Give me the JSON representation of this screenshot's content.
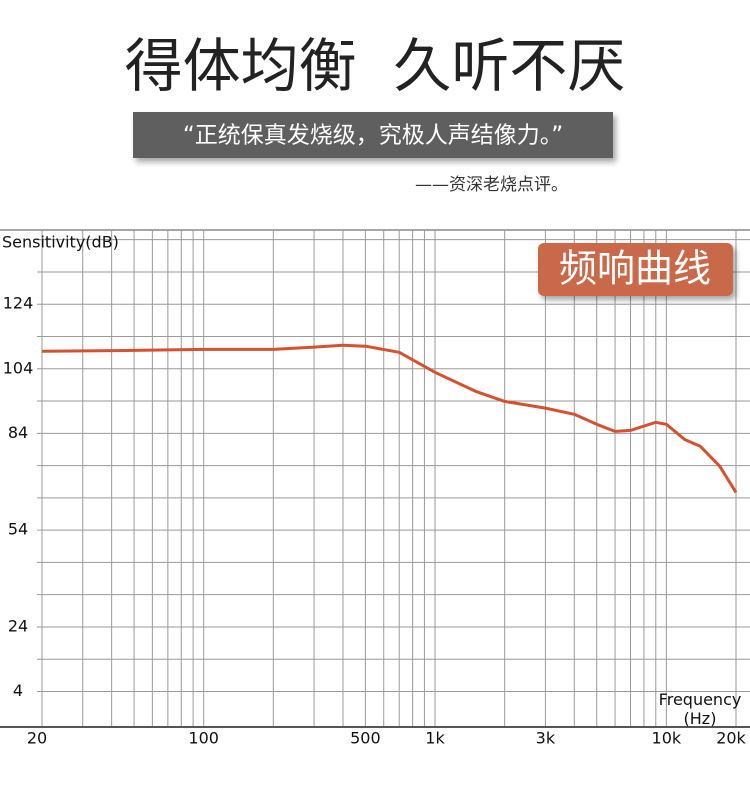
{
  "heading": "得体均衡  久听不厌",
  "quote": "“正统保真发烧级，究极人声结像力。”",
  "attribution": "——资深老烧点评。",
  "chart_data": {
    "type": "line",
    "title": "频响曲线",
    "y_label": "Sensitivity(dB)",
    "x_label": "Frequency\n(Hz)",
    "log_x": true,
    "grid": true,
    "color": "#d4522f",
    "x": [
      20,
      50,
      100,
      200,
      300,
      400,
      500,
      700,
      1000,
      1500,
      2000,
      3000,
      4000,
      5000,
      6000,
      7000,
      9000,
      10000,
      12000,
      14000,
      17000,
      20000
    ],
    "values": [
      109.4,
      109.7,
      110,
      110,
      110.7,
      111.3,
      111,
      109.1,
      102.9,
      97,
      93.9,
      91.8,
      89.9,
      86.8,
      84.6,
      84.9,
      87.4,
      86.8,
      82.1,
      80,
      73.8,
      65.7
    ],
    "xlim": [
      20,
      20000
    ],
    "ylim": [
      -7,
      147
    ],
    "xticks": [
      20,
      100,
      500,
      {
        "value": 1000,
        "label": "1k"
      },
      {
        "value": 3000,
        "label": "3k"
      },
      {
        "value": 10000,
        "label": "10k"
      },
      {
        "value": 20000,
        "label": "20k"
      }
    ],
    "yticks": [
      124,
      104,
      84,
      54,
      24,
      4
    ],
    "xgrid": [
      20,
      30,
      40,
      50,
      60,
      70,
      80,
      90,
      100,
      200,
      300,
      400,
      500,
      600,
      700,
      800,
      900,
      1000,
      2000,
      3000,
      4000,
      5000,
      6000,
      7000,
      8000,
      9000,
      10000,
      20000
    ],
    "ygrid": [
      4,
      14,
      24,
      34,
      44,
      54,
      64,
      74,
      84,
      94,
      104,
      114,
      124,
      134,
      144
    ]
  }
}
